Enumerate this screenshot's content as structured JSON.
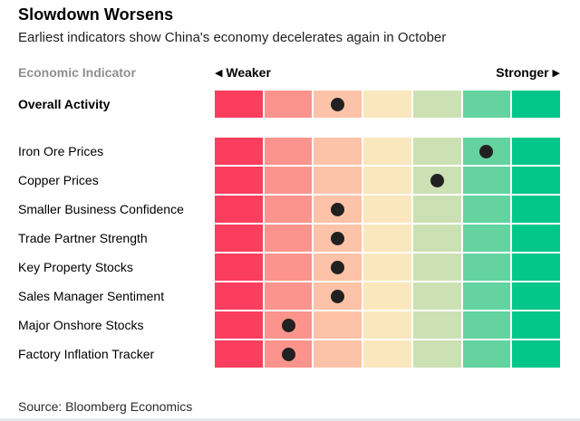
{
  "header": {
    "title": "Slowdown Worsens",
    "subtitle": "Earliest indicators show China's economy decelerates again in October"
  },
  "legend": {
    "column_header": "Economic Indicator",
    "weaker_arrow": "◀",
    "weaker_label": "Weaker",
    "stronger_label": "Stronger",
    "stronger_arrow": "▶"
  },
  "scale": {
    "levels": 7,
    "colors": [
      "#fb3d5e",
      "#fa948c",
      "#fcc3a8",
      "#fae7bd",
      "#cce1b3",
      "#64d3a0",
      "#04c689"
    ],
    "dot_color": "#212121"
  },
  "chart_data": {
    "type": "heatmap",
    "title": "Slowdown Worsens",
    "subtitle": "Earliest indicators show China's economy decelerates again in October",
    "xlabel_left": "Weaker",
    "xlabel_right": "Stronger",
    "scale_min": 1,
    "scale_max": 7,
    "legend_position": "top",
    "grid": false,
    "rows": [
      {
        "label": "Overall Activity",
        "value": 3,
        "emphasis": true
      },
      {
        "label": "Iron Ore Prices",
        "value": 6,
        "emphasis": false
      },
      {
        "label": "Copper Prices",
        "value": 5,
        "emphasis": false
      },
      {
        "label": "Smaller Business Confidence",
        "value": 3,
        "emphasis": false
      },
      {
        "label": "Trade Partner Strength",
        "value": 3,
        "emphasis": false
      },
      {
        "label": "Key Property Stocks",
        "value": 3,
        "emphasis": false
      },
      {
        "label": "Sales Manager Sentiment",
        "value": 3,
        "emphasis": false
      },
      {
        "label": "Major Onshore Stocks",
        "value": 2,
        "emphasis": false
      },
      {
        "label": "Factory Inflation Tracker",
        "value": 2,
        "emphasis": false
      }
    ]
  },
  "footer": {
    "source": "Source: Bloomberg Economics"
  }
}
